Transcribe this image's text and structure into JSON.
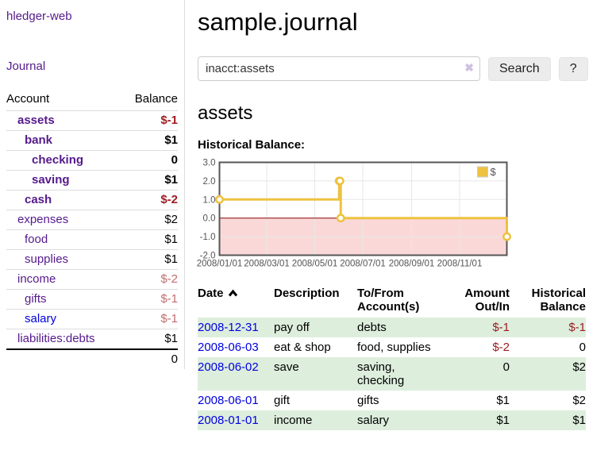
{
  "colors": {
    "link_purple": "#551a8b",
    "link_blue": "#0000e0",
    "negative_strong": "#9d1d22",
    "negative_soft": "#c26d6d",
    "row_stripe_green": "#ddeedd",
    "chart_line": "#edc240",
    "chart_negative_fill": "#fbd8d8",
    "chart_zero_line": "#8b0000",
    "chart_grid": "#e7e7e7",
    "chart_border": "#565656",
    "chart_tick_text": "#545454"
  },
  "app": {
    "title": "hledger-web"
  },
  "nav": {
    "journal_label": "Journal"
  },
  "sidebar": {
    "headers": {
      "account": "Account",
      "balance": "Balance"
    },
    "rows": [
      {
        "account": "assets",
        "depth": 1,
        "bold": true,
        "balance": "$-1",
        "balance_sign": "neg_strong"
      },
      {
        "account": "bank",
        "depth": 2,
        "bold": true,
        "balance": "$1",
        "balance_sign": "pos"
      },
      {
        "account": "checking",
        "depth": 3,
        "bold": true,
        "balance": "0",
        "balance_sign": "pos"
      },
      {
        "account": "saving",
        "depth": 3,
        "bold": true,
        "balance": "$1",
        "balance_sign": "pos"
      },
      {
        "account": "cash",
        "depth": 2,
        "bold": true,
        "balance": "$-2",
        "balance_sign": "neg_strong"
      },
      {
        "account": "expenses",
        "depth": 1,
        "bold": false,
        "balance": "$2",
        "balance_sign": "pos"
      },
      {
        "account": "food",
        "depth": 2,
        "bold": false,
        "balance": "$1",
        "balance_sign": "pos"
      },
      {
        "account": "supplies",
        "depth": 2,
        "bold": false,
        "balance": "$1",
        "balance_sign": "pos"
      },
      {
        "account": "income",
        "depth": 1,
        "bold": false,
        "balance": "$-2",
        "balance_sign": "neg_soft"
      },
      {
        "account": "gifts",
        "depth": 2,
        "bold": false,
        "balance": "$-1",
        "balance_sign": "neg_soft"
      },
      {
        "account": "salary",
        "depth": 2,
        "bold": false,
        "balance": "$-1",
        "balance_sign": "neg_soft",
        "link": "blue"
      },
      {
        "account": "liabilities:debts",
        "depth": 1,
        "bold": false,
        "balance": "$1",
        "balance_sign": "pos"
      }
    ],
    "total": "0"
  },
  "header": {
    "title": "sample.journal"
  },
  "search": {
    "value": "inacct:assets",
    "clear_label": "✖",
    "button_label": "Search",
    "help_label": "?"
  },
  "account_page": {
    "title": "assets",
    "section_label": "Historical Balance:"
  },
  "chart_data": {
    "type": "line",
    "step": true,
    "title": "Historical Balance:",
    "legend_position": "top-right",
    "legend": [
      {
        "label": "$",
        "color": "#edc240"
      }
    ],
    "xlim": [
      "2008-01-01",
      "2008-12-31"
    ],
    "ylim": [
      -2,
      3
    ],
    "y_ticks": [
      "3.0",
      "2.0",
      "1.0",
      "0.0",
      "-1.0",
      "-2.0"
    ],
    "x_ticks": [
      {
        "label": "2008/01/01",
        "date": "2008-01-01"
      },
      {
        "label": "2008/03/01",
        "date": "2008-03-01"
      },
      {
        "label": "2008/05/01",
        "date": "2008-05-01"
      },
      {
        "label": "2008/07/01",
        "date": "2008-07-01"
      },
      {
        "label": "2008/09/01",
        "date": "2008-09-01"
      },
      {
        "label": "2008/11/01",
        "date": "2008-11-01"
      }
    ],
    "series": [
      {
        "name": "$",
        "points": [
          [
            "2008-01-01",
            1
          ],
          [
            "2008-06-01",
            2
          ],
          [
            "2008-06-02",
            2
          ],
          [
            "2008-06-03",
            0
          ],
          [
            "2008-12-31",
            -1
          ]
        ]
      }
    ]
  },
  "register": {
    "headers": [
      "Date",
      "Description",
      "To/From Account(s)",
      "Amount Out/In",
      "Historical Balance"
    ],
    "rows": [
      {
        "date": "2008-12-31",
        "description": "pay off",
        "accounts": "debts",
        "amount": "$-1",
        "amount_sign": "neg",
        "balance": "$-1",
        "balance_sign": "neg"
      },
      {
        "date": "2008-06-03",
        "description": "eat & shop",
        "accounts": "food, supplies",
        "amount": "$-2",
        "amount_sign": "neg",
        "balance": "0",
        "balance_sign": "pos"
      },
      {
        "date": "2008-06-02",
        "description": "save",
        "accounts": "saving, checking",
        "amount": "0",
        "amount_sign": "pos",
        "balance": "$2",
        "balance_sign": "pos"
      },
      {
        "date": "2008-06-01",
        "description": "gift",
        "accounts": "gifts",
        "amount": "$1",
        "amount_sign": "pos",
        "balance": "$2",
        "balance_sign": "pos"
      },
      {
        "date": "2008-01-01",
        "description": "income",
        "accounts": "salary",
        "amount": "$1",
        "amount_sign": "pos",
        "balance": "$1",
        "balance_sign": "pos"
      }
    ]
  }
}
